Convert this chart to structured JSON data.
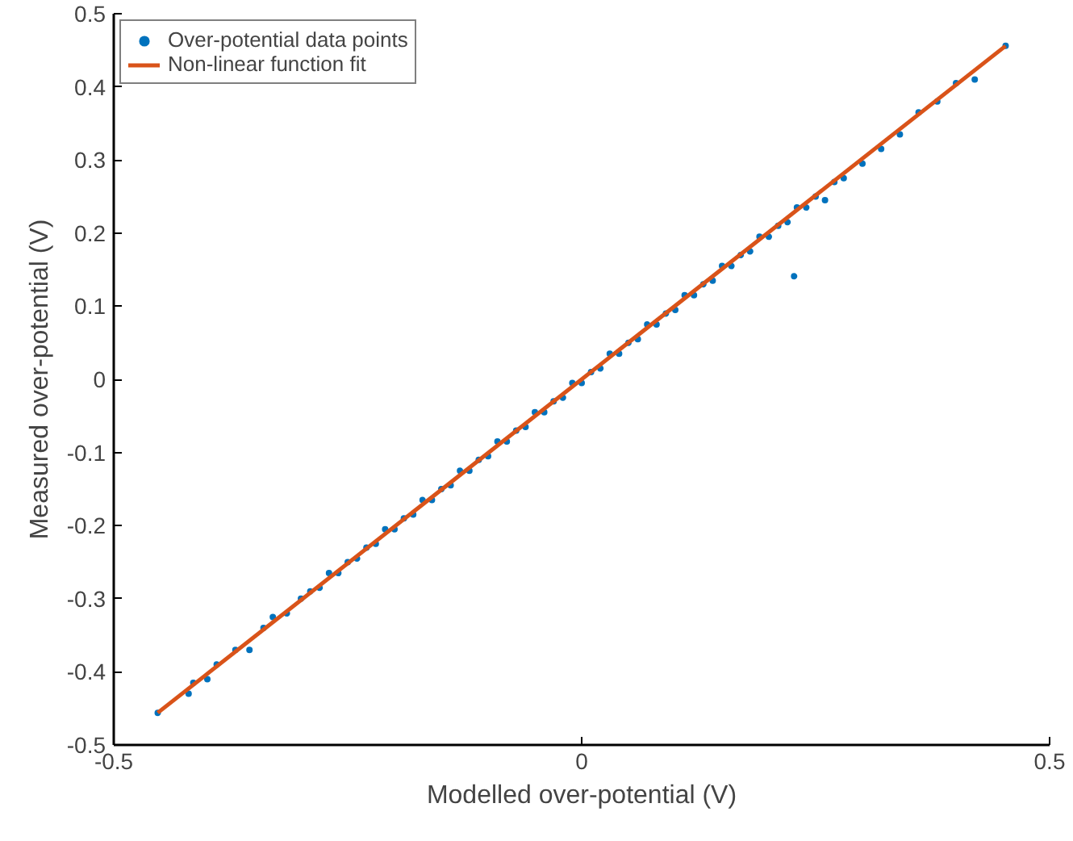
{
  "chart_data": {
    "type": "scatter",
    "xlabel": "Modelled over-potential (V)",
    "ylabel": "Measured over-potential (V)",
    "xlim": [
      -0.5,
      0.5
    ],
    "ylim": [
      -0.5,
      0.5
    ],
    "xticks": [
      -0.5,
      0,
      0.5
    ],
    "yticks": [
      -0.5,
      -0.4,
      -0.3,
      -0.2,
      -0.1,
      0,
      0.1,
      0.2,
      0.3,
      0.4,
      0.5
    ],
    "grid": false,
    "legend": "top left",
    "series": [
      {
        "name": "Over-potential data points",
        "marker": "circle",
        "color": "#0072bd",
        "x": [
          -0.453,
          -0.42,
          -0.415,
          -0.4,
          -0.39,
          -0.37,
          -0.355,
          -0.34,
          -0.33,
          -0.315,
          -0.3,
          -0.29,
          -0.28,
          -0.27,
          -0.26,
          -0.25,
          -0.24,
          -0.23,
          -0.22,
          -0.21,
          -0.2,
          -0.19,
          -0.18,
          -0.17,
          -0.16,
          -0.15,
          -0.14,
          -0.13,
          -0.12,
          -0.11,
          -0.1,
          -0.09,
          -0.08,
          -0.07,
          -0.06,
          -0.05,
          -0.04,
          -0.03,
          -0.02,
          -0.01,
          0,
          0.01,
          0.02,
          0.03,
          0.04,
          0.05,
          0.06,
          0.07,
          0.08,
          0.09,
          0.1,
          0.11,
          0.12,
          0.13,
          0.14,
          0.15,
          0.16,
          0.17,
          0.18,
          0.19,
          0.2,
          0.21,
          0.22,
          0.23,
          0.24,
          0.25,
          0.26,
          0.27,
          0.28,
          0.3,
          0.32,
          0.34,
          0.36,
          0.38,
          0.4,
          0.42,
          0.453,
          0.227
        ],
        "values": [
          -0.456,
          -0.43,
          -0.415,
          -0.41,
          -0.39,
          -0.37,
          -0.37,
          -0.34,
          -0.325,
          -0.32,
          -0.3,
          -0.29,
          -0.285,
          -0.265,
          -0.265,
          -0.25,
          -0.245,
          -0.23,
          -0.225,
          -0.205,
          -0.205,
          -0.19,
          -0.185,
          -0.165,
          -0.165,
          -0.15,
          -0.145,
          -0.125,
          -0.125,
          -0.11,
          -0.105,
          -0.085,
          -0.085,
          -0.07,
          -0.065,
          -0.045,
          -0.045,
          -0.03,
          -0.025,
          -0.005,
          -0.005,
          0.01,
          0.015,
          0.035,
          0.035,
          0.05,
          0.055,
          0.075,
          0.075,
          0.09,
          0.095,
          0.115,
          0.115,
          0.13,
          0.135,
          0.155,
          0.155,
          0.17,
          0.175,
          0.195,
          0.195,
          0.21,
          0.215,
          0.235,
          0.235,
          0.25,
          0.245,
          0.27,
          0.275,
          0.295,
          0.315,
          0.335,
          0.365,
          0.38,
          0.405,
          0.41,
          0.456,
          0.141
        ]
      },
      {
        "name": "Non-linear function fit",
        "type": "line",
        "line_style": "solid",
        "color": "#d95319",
        "x": [
          -0.453,
          0.453
        ],
        "values": [
          -0.456,
          0.456
        ]
      }
    ]
  }
}
